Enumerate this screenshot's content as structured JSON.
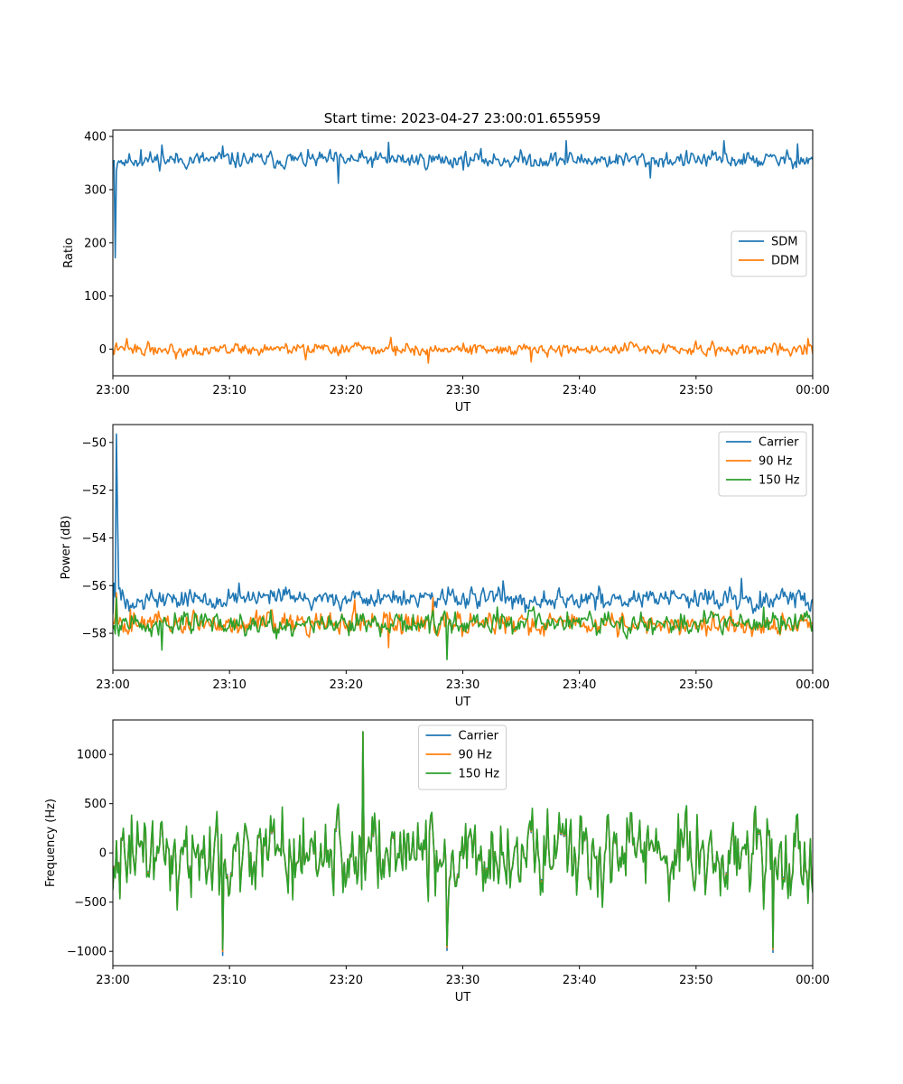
{
  "figure_title": "Start time: 2023-04-27 23:00:01.655959",
  "chart_data": [
    {
      "type": "line",
      "title": "Start time: 2023-04-27 23:00:01.655959",
      "xlabel": "UT",
      "ylabel": "Ratio",
      "x_ticks": [
        "23:00",
        "23:10",
        "23:20",
        "23:30",
        "23:40",
        "23:50",
        "00:00"
      ],
      "xlim": [
        0,
        60
      ],
      "ylim": [
        -50,
        412
      ],
      "y_ticks": [
        0,
        100,
        200,
        300,
        400
      ],
      "y_tick_labels": [
        "0",
        "100",
        "200",
        "300",
        "400"
      ],
      "legend_position": "center-right",
      "grid": false,
      "series": [
        {
          "name": "SDM",
          "color": "#1f77b4",
          "base": 356,
          "noise": 11,
          "seed": 11,
          "n": 600,
          "spikes": [
            {
              "x": 0.0,
              "y": 345
            },
            {
              "x": 0.2,
              "y": 172
            },
            {
              "x": 0.35,
              "y": 335
            },
            {
              "x": 1.0,
              "y": 345
            },
            {
              "x": 2.4,
              "y": 375
            },
            {
              "x": 4.2,
              "y": 384
            },
            {
              "x": 9.4,
              "y": 382
            },
            {
              "x": 19.3,
              "y": 312
            },
            {
              "x": 23.6,
              "y": 389
            },
            {
              "x": 38.9,
              "y": 392
            },
            {
              "x": 46.1,
              "y": 322
            },
            {
              "x": 52.4,
              "y": 392
            },
            {
              "x": 58.7,
              "y": 386
            }
          ]
        },
        {
          "name": "DDM",
          "color": "#ff7f0e",
          "base": 0,
          "noise": 8,
          "seed": 22,
          "n": 600,
          "spikes": [
            {
              "x": 1.2,
              "y": 20
            },
            {
              "x": 5.4,
              "y": -18
            },
            {
              "x": 16.5,
              "y": -20
            },
            {
              "x": 23.8,
              "y": 22
            },
            {
              "x": 27.0,
              "y": -26
            },
            {
              "x": 35.9,
              "y": -24
            },
            {
              "x": 59.6,
              "y": 20
            }
          ]
        }
      ]
    },
    {
      "type": "line",
      "title": "",
      "xlabel": "UT",
      "ylabel": "Power (dB)",
      "x_ticks": [
        "23:00",
        "23:10",
        "23:20",
        "23:30",
        "23:40",
        "23:50",
        "00:00"
      ],
      "xlim": [
        0,
        60
      ],
      "ylim": [
        -59.55,
        -49.25
      ],
      "y_ticks": [
        -58,
        -56,
        -54,
        -52,
        -50
      ],
      "y_tick_labels": [
        "−58",
        "−56",
        "−54",
        "−52",
        "−50"
      ],
      "legend_position": "top-right",
      "grid": false,
      "series": [
        {
          "name": "Carrier",
          "color": "#1f77b4",
          "base": -56.55,
          "noise": 0.3,
          "seed": 33,
          "n": 600,
          "spikes": [
            {
              "x": 0.0,
              "y": -57.2
            },
            {
              "x": 0.15,
              "y": -55.9
            },
            {
              "x": 0.3,
              "y": -49.65
            },
            {
              "x": 0.45,
              "y": -53.2
            },
            {
              "x": 0.6,
              "y": -56.1
            },
            {
              "x": 10.8,
              "y": -55.9
            },
            {
              "x": 33.5,
              "y": -55.8
            },
            {
              "x": 53.9,
              "y": -55.7
            }
          ]
        },
        {
          "name": "90 Hz",
          "color": "#ff7f0e",
          "base": -57.6,
          "noise": 0.33,
          "seed": 44,
          "n": 600,
          "spikes": [
            {
              "x": 0.3,
              "y": -56.3
            },
            {
              "x": 1.5,
              "y": -57.0
            },
            {
              "x": 20.7,
              "y": -56.6
            },
            {
              "x": 27.4,
              "y": -56.5
            },
            {
              "x": 23.6,
              "y": -58.6
            }
          ]
        },
        {
          "name": "150 Hz",
          "color": "#2ca02c",
          "base": -57.6,
          "noise": 0.33,
          "seed": 55,
          "n": 600,
          "spikes": [
            {
              "x": 0.3,
              "y": -56.5
            },
            {
              "x": 4.2,
              "y": -58.7
            },
            {
              "x": 28.6,
              "y": -59.1
            },
            {
              "x": 33.0,
              "y": -56.9
            },
            {
              "x": 55.8,
              "y": -56.9
            }
          ]
        }
      ]
    },
    {
      "type": "line",
      "title": "",
      "xlabel": "UT",
      "ylabel": "Frequency (Hz)",
      "x_ticks": [
        "23:00",
        "23:10",
        "23:20",
        "23:30",
        "23:40",
        "23:50",
        "00:00"
      ],
      "xlim": [
        0,
        60
      ],
      "ylim": [
        -1145,
        1350
      ],
      "y_ticks": [
        -1000,
        -500,
        0,
        500,
        1000
      ],
      "y_tick_labels": [
        "−1000",
        "−500",
        "0",
        "500",
        "1000"
      ],
      "legend_position": "top-center",
      "grid": false,
      "series": [
        {
          "name": "Carrier",
          "color": "#1f77b4",
          "base": 0,
          "noise": 300,
          "seed": 66,
          "n": 600,
          "offset": -60,
          "spikes": [
            {
              "x": 9.4,
              "y": -1040
            },
            {
              "x": 21.4,
              "y": 1230
            },
            {
              "x": 56.6,
              "y": -1010
            },
            {
              "x": 28.6,
              "y": -990
            }
          ]
        },
        {
          "name": "90 Hz",
          "color": "#ff7f0e",
          "base": 0,
          "noise": 300,
          "seed": 66,
          "n": 600,
          "offset": -30,
          "spikes": [
            {
              "x": 9.4,
              "y": -1000
            },
            {
              "x": 21.4,
              "y": 1230
            },
            {
              "x": 56.6,
              "y": -980
            },
            {
              "x": 28.6,
              "y": -960
            }
          ]
        },
        {
          "name": "150 Hz",
          "color": "#2ca02c",
          "base": 0,
          "noise": 300,
          "seed": 66,
          "n": 600,
          "offset": 0,
          "spikes": [
            {
              "x": 9.4,
              "y": -980
            },
            {
              "x": 21.4,
              "y": 1230
            },
            {
              "x": 56.6,
              "y": -960
            },
            {
              "x": 28.6,
              "y": -940
            }
          ]
        }
      ]
    }
  ]
}
